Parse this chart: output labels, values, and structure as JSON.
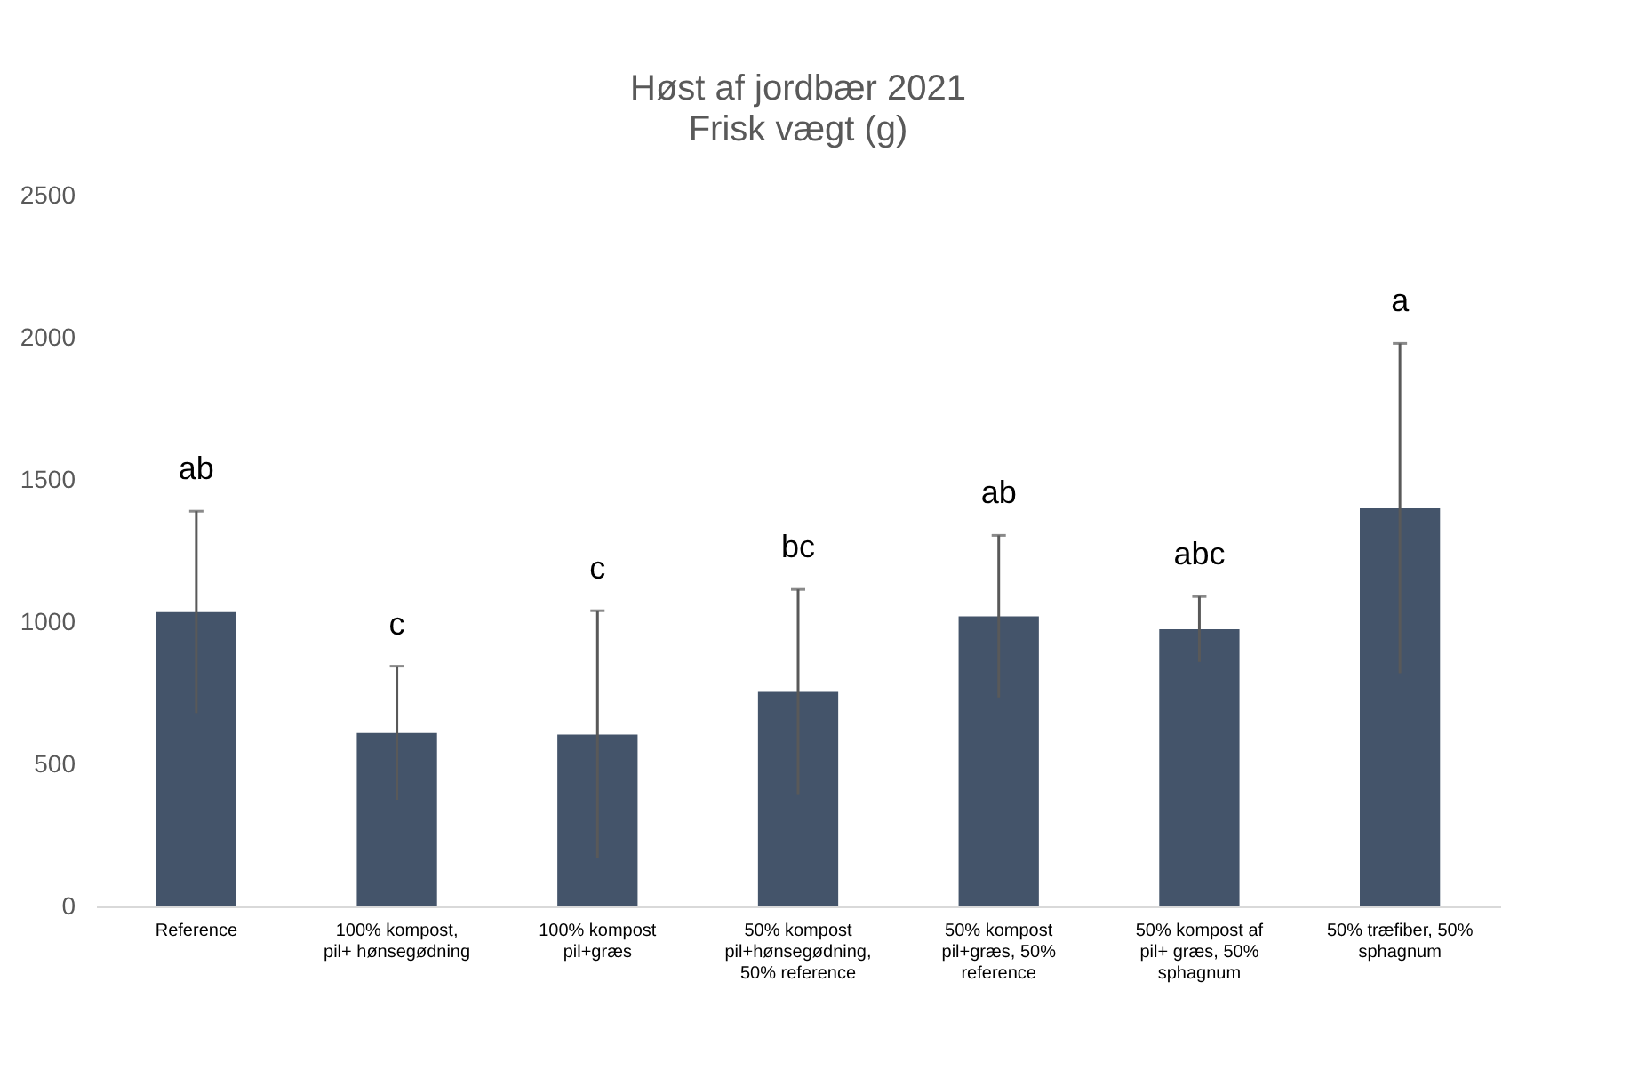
{
  "chart_data": {
    "type": "bar",
    "title": "Høst af jordbær 2021",
    "subtitle": "Frisk vægt (g)",
    "categories": [
      "Reference",
      "100% kompost, pil+ hønsegødning",
      "100% kompost pil+græs",
      "50% kompost pil+hønsegødning, 50% reference",
      "50% kompost pil+græs, 50% reference",
      "50% kompost af pil+ græs, 50% sphagnum",
      "50% træfiber, 50% sphagnum"
    ],
    "values": [
      1035,
      610,
      605,
      755,
      1020,
      975,
      1400
    ],
    "errors": [
      355,
      235,
      435,
      360,
      285,
      115,
      580
    ],
    "color": "#44546a",
    "ylim": [
      0,
      2500
    ],
    "yticks": [
      0,
      500,
      1000,
      1500,
      2000,
      2500
    ],
    "grid": false,
    "annotations": [
      "ab",
      "c",
      "c",
      "bc",
      "ab",
      "abc",
      "a"
    ]
  }
}
